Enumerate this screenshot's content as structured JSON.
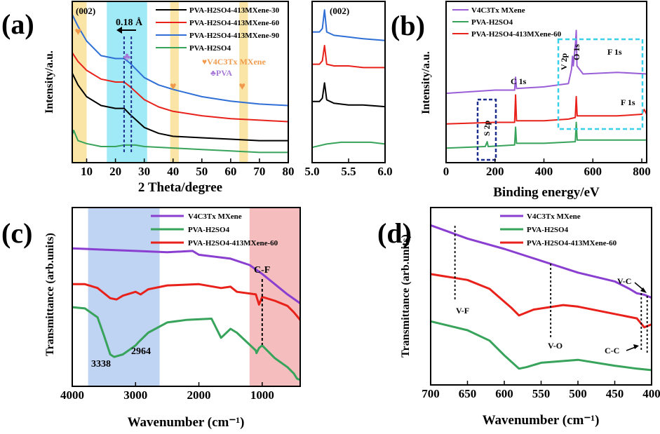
{
  "figure": {
    "panels": [
      {
        "id": "a",
        "label": "(a)"
      },
      {
        "id": "b",
        "label": "(b)"
      },
      {
        "id": "c",
        "label": "(c)"
      },
      {
        "id": "d",
        "label": "(d)"
      }
    ]
  },
  "chart_data": [
    {
      "panel": "a",
      "type": "line",
      "title": "",
      "xlabel": "2 Theta/degree",
      "ylabel": "Intensity/a.u.",
      "xlim": [
        5,
        80
      ],
      "xticks": [
        10,
        20,
        30,
        40,
        50,
        60,
        70,
        80
      ],
      "xtick_labels": [
        "10",
        "20",
        "30",
        "40",
        "50",
        "60",
        "70",
        "80"
      ],
      "legend": [
        {
          "name": "PVA-H2SO4-413MXene-30",
          "color": "#000000"
        },
        {
          "name": "PVA-H2SO4-413MXene-60",
          "color": "#e8221b"
        },
        {
          "name": "PVA-H2SO4-413MXene-90",
          "color": "#2f6fd6"
        },
        {
          "name": "PVA-H2SO4",
          "color": "#38a35a"
        }
      ],
      "series": [
        {
          "name": "PVA-H2SO4-413MXene-90",
          "color": "#2f6fd6",
          "x": [
            5,
            7,
            10,
            15,
            20,
            23,
            25,
            30,
            35,
            40,
            50,
            60,
            70,
            80
          ],
          "y": [
            0.96,
            0.88,
            0.78,
            0.68,
            0.66,
            0.66,
            0.63,
            0.53,
            0.48,
            0.45,
            0.4,
            0.37,
            0.35,
            0.34
          ]
        },
        {
          "name": "PVA-H2SO4-413MXene-60",
          "color": "#e8221b",
          "x": [
            5,
            7,
            10,
            15,
            20,
            23,
            25,
            30,
            35,
            40,
            50,
            60,
            70,
            80
          ],
          "y": [
            0.7,
            0.64,
            0.58,
            0.52,
            0.5,
            0.5,
            0.47,
            0.38,
            0.33,
            0.3,
            0.27,
            0.25,
            0.24,
            0.23
          ]
        },
        {
          "name": "PVA-H2SO4-413MXene-30",
          "color": "#000000",
          "x": [
            5,
            7,
            10,
            15,
            20,
            23,
            25,
            30,
            35,
            40,
            50,
            60,
            70,
            80
          ],
          "y": [
            0.56,
            0.48,
            0.4,
            0.34,
            0.32,
            0.32,
            0.28,
            0.19,
            0.15,
            0.13,
            0.12,
            0.11,
            0.1,
            0.1
          ]
        },
        {
          "name": "PVA-H2SO4",
          "color": "#38a35a",
          "x": [
            5,
            5.5,
            7,
            10,
            15,
            20,
            23,
            27,
            30,
            40,
            50,
            60,
            70,
            80
          ],
          "y": [
            0.14,
            0.17,
            0.1,
            0.08,
            0.06,
            0.06,
            0.07,
            0.07,
            0.06,
            0.05,
            0.04,
            0.03,
            0.02,
            0.02
          ]
        }
      ],
      "annotations": {
        "peak_label": "(002)",
        "shift_label": "0.18 Å",
        "marker_mxene": "♥V4C3Tx MXene",
        "marker_pva": "♣PVA"
      },
      "highlight_bands": [
        [
          5,
          10,
          "#f8dc8a"
        ],
        [
          17,
          31,
          "#7fe3f3"
        ],
        [
          39,
          42,
          "#f8dc8a"
        ],
        [
          63,
          66,
          "#f8dc8a"
        ]
      ],
      "heart_markers_x": [
        7,
        40,
        64
      ],
      "pva_marker_x": 24,
      "dashed_lines_x": [
        23,
        25.5
      ]
    },
    {
      "panel": "a-inset",
      "type": "line",
      "xlabel": "",
      "ylabel": "",
      "xlim": [
        5.0,
        6.0
      ],
      "xticks": [
        5.0,
        5.5,
        6.0
      ],
      "xtick_labels": [
        "5.0",
        "5.5",
        "6.0"
      ],
      "peak_label": "(002)",
      "series": [
        {
          "name": "PVA-H2SO4-413MXene-90",
          "color": "#2f6fd6",
          "x": [
            5.0,
            5.1,
            5.14,
            5.17,
            5.2,
            5.3,
            5.5,
            5.7,
            6.0
          ],
          "y": [
            0.82,
            0.82,
            0.84,
            0.95,
            0.82,
            0.8,
            0.79,
            0.78,
            0.77
          ]
        },
        {
          "name": "PVA-H2SO4-413MXene-60",
          "color": "#e8221b",
          "x": [
            5.0,
            5.1,
            5.14,
            5.17,
            5.2,
            5.3,
            5.5,
            5.7,
            6.0
          ],
          "y": [
            0.63,
            0.63,
            0.65,
            0.74,
            0.63,
            0.62,
            0.62,
            0.61,
            0.61
          ]
        },
        {
          "name": "PVA-H2SO4-413MXene-30",
          "color": "#000000",
          "x": [
            5.0,
            5.1,
            5.14,
            5.17,
            5.2,
            5.3,
            5.5,
            5.7,
            6.0
          ],
          "y": [
            0.41,
            0.41,
            0.43,
            0.52,
            0.42,
            0.4,
            0.39,
            0.39,
            0.38
          ]
        },
        {
          "name": "PVA-H2SO4",
          "color": "#38a35a",
          "x": [
            5.0,
            5.2,
            5.4,
            5.6,
            5.8,
            6.0
          ],
          "y": [
            0.14,
            0.16,
            0.17,
            0.17,
            0.17,
            0.16
          ]
        }
      ]
    },
    {
      "panel": "b",
      "type": "line",
      "xlabel": "Binding energy/eV",
      "ylabel": "Intensity/a.u.",
      "xlim": [
        0,
        820
      ],
      "xticks": [
        0,
        200,
        400,
        600,
        800
      ],
      "xtick_labels": [
        "0",
        "200",
        "400",
        "600",
        "800"
      ],
      "legend": [
        {
          "name": "V4C3Tx MXene",
          "color": "#9a5fd6"
        },
        {
          "name": "PVA-H2SO4",
          "color": "#38a35a"
        },
        {
          "name": "PVA-H2SO4-413MXene-60",
          "color": "#e8221b"
        }
      ],
      "series": [
        {
          "name": "V4C3Tx MXene",
          "color": "#9a5fd6",
          "x": [
            0,
            200,
            280,
            284,
            288,
            400,
            500,
            513,
            517,
            520,
            529,
            532,
            535,
            560,
            700,
            820
          ],
          "y": [
            0.43,
            0.45,
            0.45,
            0.53,
            0.46,
            0.47,
            0.49,
            0.58,
            0.66,
            0.6,
            0.74,
            0.82,
            0.6,
            0.55,
            0.56,
            0.55
          ]
        },
        {
          "name": "PVA-H2SO4-413MXene-60",
          "color": "#e8221b",
          "x": [
            0,
            200,
            280,
            284,
            288,
            400,
            500,
            528,
            532,
            536,
            700,
            800,
            810,
            820
          ],
          "y": [
            0.24,
            0.25,
            0.25,
            0.42,
            0.26,
            0.26,
            0.27,
            0.28,
            0.41,
            0.29,
            0.29,
            0.3,
            0.33,
            0.3
          ]
        },
        {
          "name": "PVA-H2SO4",
          "color": "#38a35a",
          "x": [
            0,
            160,
            168,
            172,
            280,
            284,
            288,
            400,
            528,
            532,
            536,
            700,
            820
          ],
          "y": [
            0.09,
            0.1,
            0.13,
            0.1,
            0.11,
            0.22,
            0.12,
            0.12,
            0.13,
            0.25,
            0.14,
            0.14,
            0.14
          ]
        }
      ],
      "annotations": {
        "c1s": "C 1s",
        "v2p": "V 2p",
        "o1s": "O 1s",
        "f1s_top": "F 1s",
        "f1s_bottom": "F 1s",
        "s2p": "S 2p"
      }
    },
    {
      "panel": "c",
      "type": "line",
      "xlabel": "Wavenumber (cm⁻¹)",
      "ylabel": "Transmittance (arb.units)",
      "xlim": [
        4000,
        400
      ],
      "xticks": [
        4000,
        3000,
        2000,
        1000
      ],
      "xtick_labels": [
        "4000",
        "3000",
        "2000",
        "1000"
      ],
      "legend": [
        {
          "name": "V4C3Tx MXene",
          "color": "#8a3fd1"
        },
        {
          "name": "PVA-H2SO4",
          "color": "#38a35a"
        },
        {
          "name": "PVA-H2SO4-413MXene-60",
          "color": "#e8221b"
        }
      ],
      "series": [
        {
          "name": "V4C3Tx MXene",
          "color": "#8a3fd1",
          "x": [
            4000,
            3500,
            3000,
            2500,
            2100,
            2000,
            1500,
            1200,
            1000,
            800,
            600,
            400
          ],
          "y": [
            0.88,
            0.87,
            0.86,
            0.85,
            0.86,
            0.83,
            0.8,
            0.75,
            0.68,
            0.6,
            0.52,
            0.45
          ]
        },
        {
          "name": "PVA-H2SO4-413MXene-60",
          "color": "#e8221b",
          "x": [
            4000,
            3800,
            3600,
            3400,
            3300,
            3200,
            3000,
            2920,
            2800,
            2500,
            2000,
            1650,
            1500,
            1400,
            1100,
            1050,
            1000,
            800,
            600,
            500,
            400
          ],
          "y": [
            0.6,
            0.6,
            0.57,
            0.49,
            0.48,
            0.51,
            0.54,
            0.52,
            0.56,
            0.59,
            0.6,
            0.57,
            0.58,
            0.54,
            0.52,
            0.44,
            0.5,
            0.47,
            0.43,
            0.38,
            0.32
          ]
        },
        {
          "name": "PVA-H2SO4",
          "color": "#38a35a",
          "x": [
            4000,
            3800,
            3600,
            3500,
            3400,
            3338,
            3200,
            3000,
            2964,
            2800,
            2500,
            2200,
            1800,
            1650,
            1500,
            1400,
            1100,
            1090,
            1050,
            1000,
            800,
            600,
            500,
            450,
            400
          ],
          "y": [
            0.42,
            0.41,
            0.34,
            0.2,
            0.05,
            0.03,
            0.05,
            0.12,
            0.14,
            0.22,
            0.3,
            0.32,
            0.33,
            0.18,
            0.25,
            0.22,
            0.08,
            0.06,
            0.1,
            0.12,
            0.02,
            -0.05,
            -0.1,
            -0.14,
            -0.15
          ]
        }
      ],
      "annotations": {
        "cf": "C-F",
        "oh_3338": "3338",
        "ch_2964": "2964"
      },
      "highlight_bands": [
        [
          3750,
          2620,
          "#a9c4ef"
        ],
        [
          1200,
          400,
          "#f2a7a7"
        ]
      ],
      "dashed_lines_x": [
        1000
      ]
    },
    {
      "panel": "d",
      "type": "line",
      "xlabel": "Wavenumber (cm⁻¹)",
      "ylabel": "Transmittance (arb.units)",
      "xlim": [
        700,
        400
      ],
      "xticks": [
        700,
        650,
        600,
        550,
        500,
        450,
        400
      ],
      "xtick_labels": [
        "700",
        "650",
        "600",
        "550",
        "500",
        "450",
        "400"
      ],
      "legend": [
        {
          "name": "V4C3Tx MXene",
          "color": "#8a3fd1"
        },
        {
          "name": "PVA-H2SO4",
          "color": "#38a35a"
        },
        {
          "name": "PVA-H2SO4-413MXene-60",
          "color": "#e8221b"
        }
      ],
      "series": [
        {
          "name": "V4C3Tx MXene",
          "color": "#8a3fd1",
          "x": [
            700,
            650,
            600,
            550,
            500,
            450,
            430,
            420,
            410,
            400
          ],
          "y": [
            0.93,
            0.84,
            0.77,
            0.69,
            0.61,
            0.55,
            0.5,
            0.47,
            0.46,
            0.44
          ]
        },
        {
          "name": "PVA-H2SO4-413MXene-60",
          "color": "#e8221b",
          "x": [
            700,
            650,
            620,
            590,
            580,
            560,
            520,
            500,
            450,
            420,
            410,
            400
          ],
          "y": [
            0.6,
            0.56,
            0.5,
            0.37,
            0.32,
            0.36,
            0.39,
            0.38,
            0.33,
            0.3,
            0.24,
            0.26
          ]
        },
        {
          "name": "PVA-H2SO4",
          "color": "#38a35a",
          "x": [
            700,
            650,
            620,
            600,
            580,
            570,
            550,
            500,
            450,
            420,
            400
          ],
          "y": [
            0.28,
            0.22,
            0.15,
            0.05,
            -0.04,
            -0.03,
            0.0,
            0.02,
            -0.02,
            -0.04,
            -0.05
          ]
        }
      ],
      "annotations": {
        "vf": "V-F",
        "vo": "V-O",
        "vc": "V-C",
        "cc": "C-C"
      },
      "dashed_lines_x": [
        667,
        537,
        414,
        406
      ]
    }
  ]
}
